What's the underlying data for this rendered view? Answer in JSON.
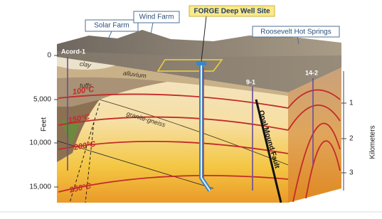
{
  "callouts": {
    "solar_farm": "Solar Farm",
    "wind_farm": "Wind Farm",
    "forge_site": "FORGE Deep Well Site",
    "hot_springs": "Roosevelt Hot Springs"
  },
  "layers": {
    "clay": "clay",
    "alluvium": "alluvium",
    "tuffs": "tuffs",
    "basement": "granite-gneiss"
  },
  "isotherms": [
    "100°C",
    "150°C",
    "200°C",
    "250°C"
  ],
  "wells": {
    "acord": "Acord-1",
    "well_9_1": "9-1",
    "well_14_2": "14-2"
  },
  "fault": "Opal Mound Fault",
  "depth_feet": {
    "title": "Feet",
    "ticks": [
      "0",
      "5,000",
      "10,000",
      "15,000"
    ]
  },
  "depth_km": {
    "title": "Kilometers",
    "ticks": [
      "1",
      "2",
      "3"
    ]
  }
}
